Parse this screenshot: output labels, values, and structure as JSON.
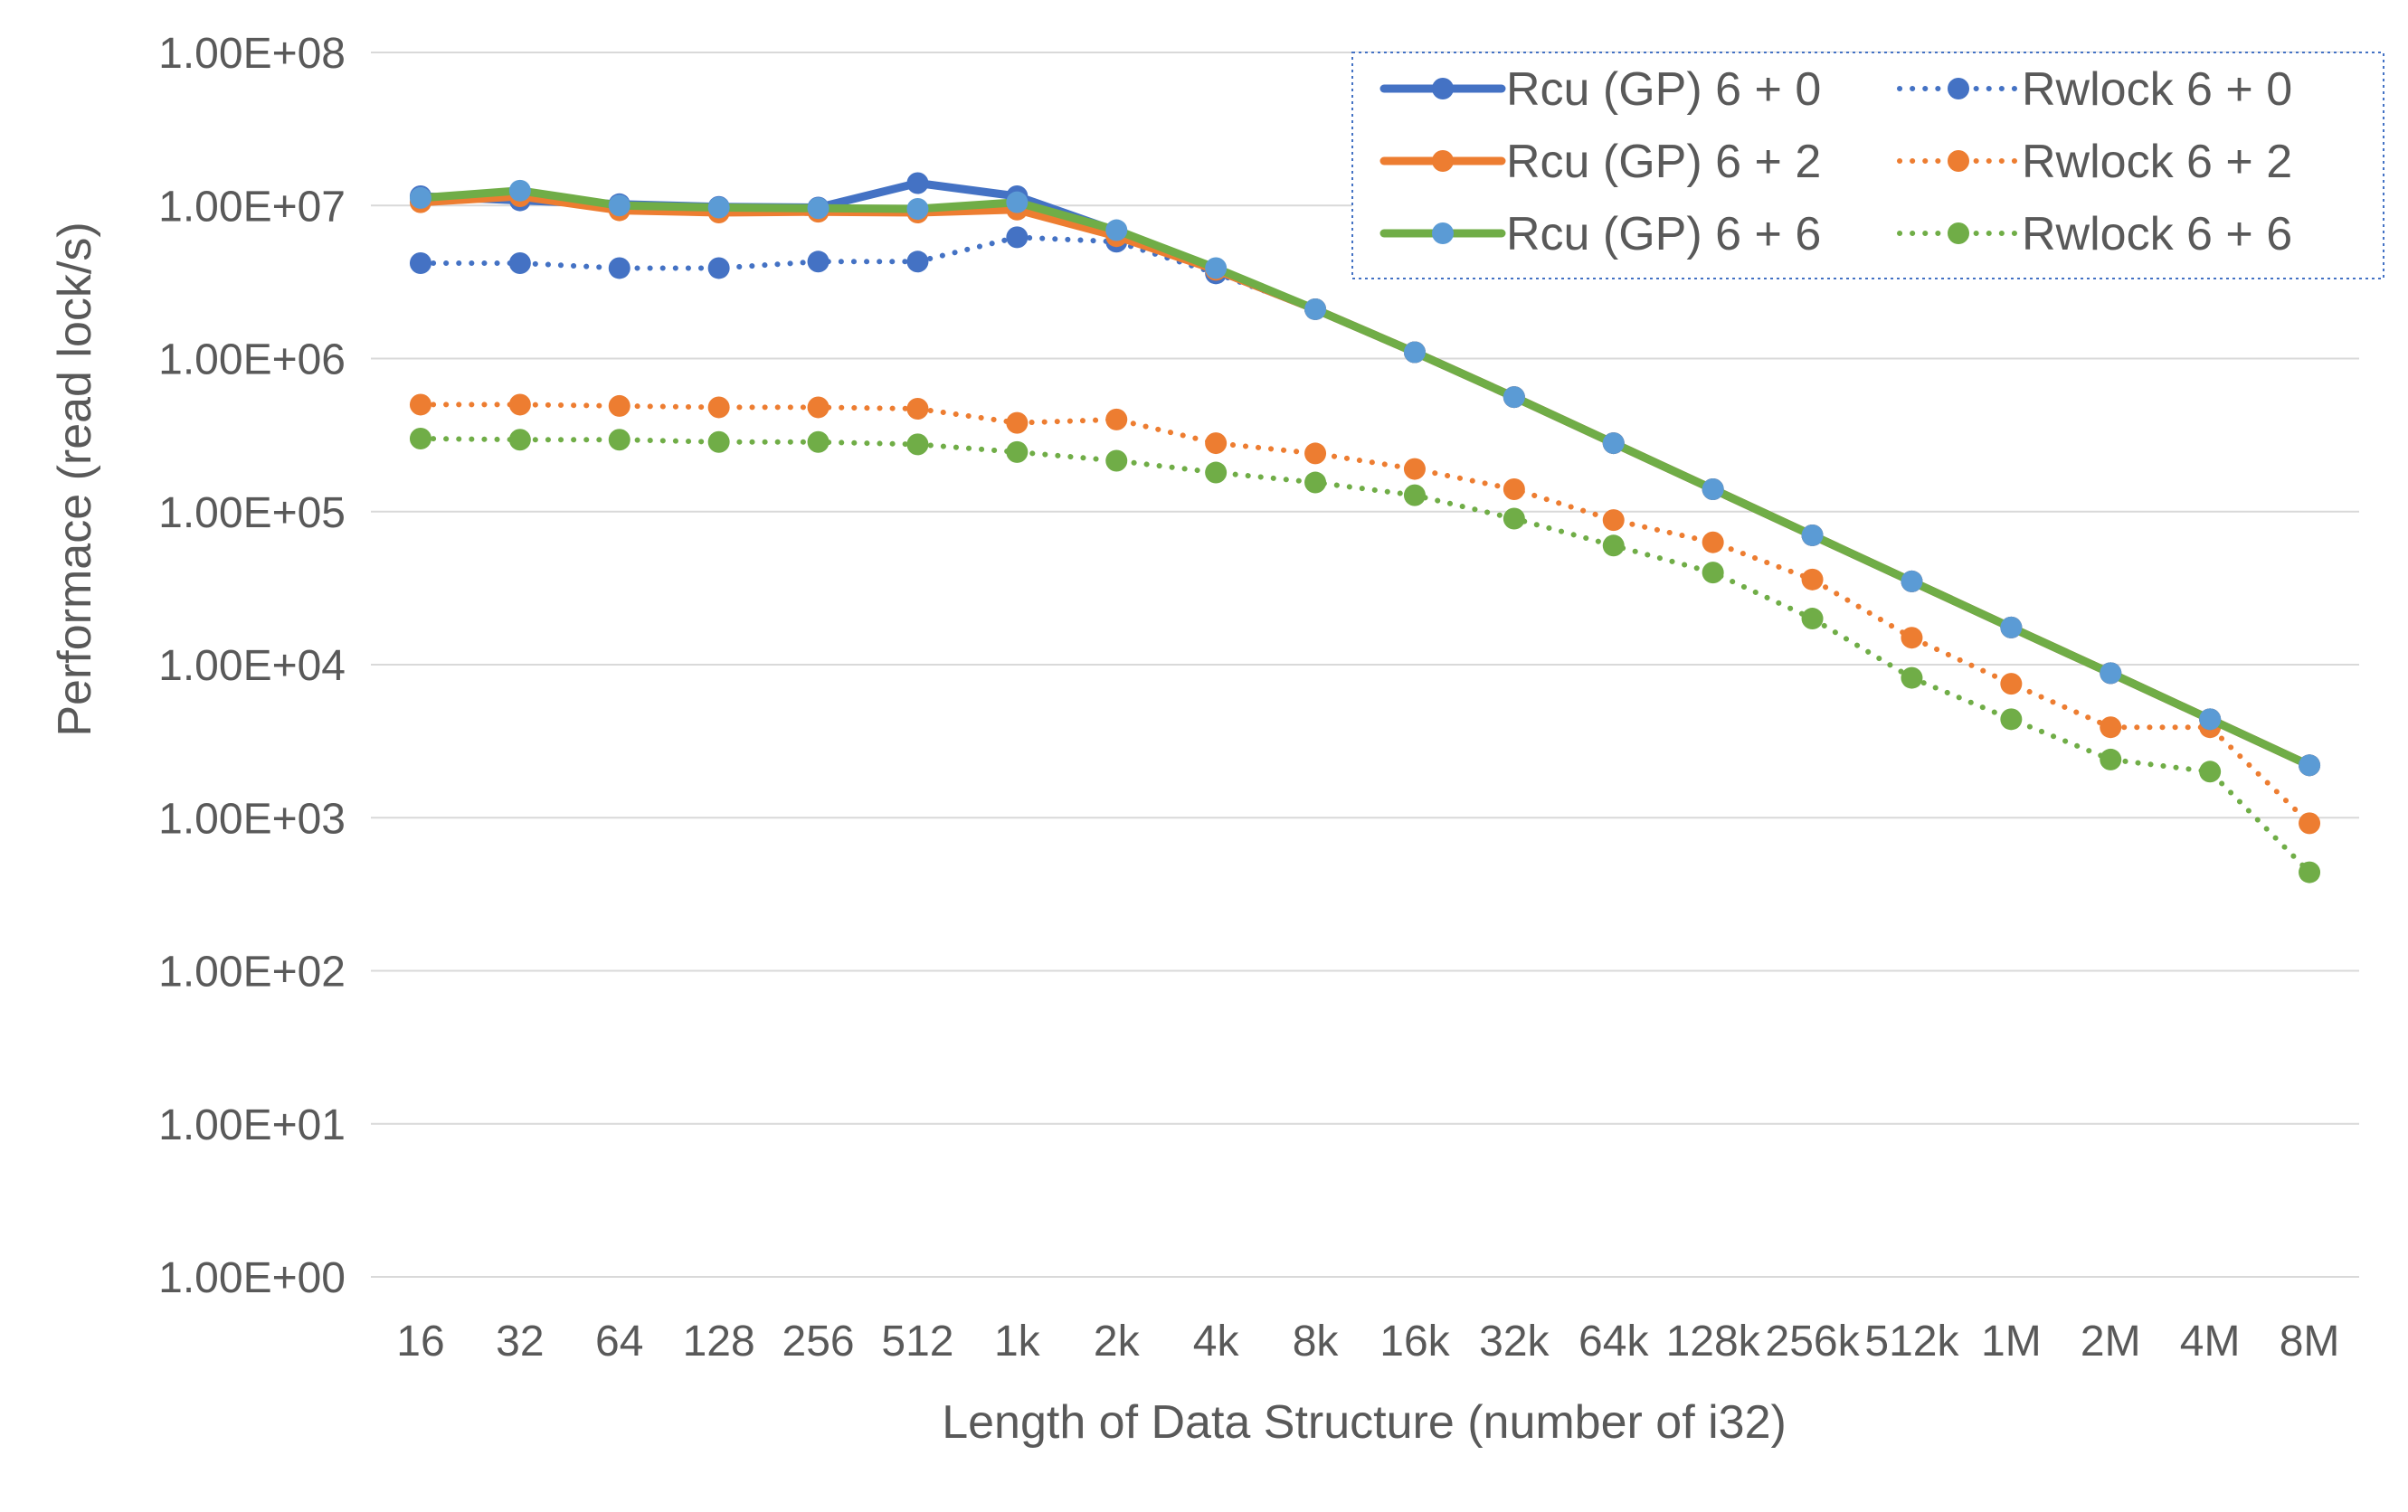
{
  "chart_data": {
    "type": "line",
    "title": "",
    "xlabel": "Length of Data Structure (number of i32)",
    "ylabel": "Performace (read lock/s)",
    "y_scale": "log",
    "ylim": [
      1,
      100000000
    ],
    "y_ticks": [
      1,
      10,
      100,
      1000,
      10000,
      100000,
      1000000,
      10000000,
      100000000
    ],
    "y_tick_labels": [
      "1.00E+00",
      "1.00E+01",
      "1.00E+02",
      "1.00E+03",
      "1.00E+04",
      "1.00E+05",
      "1.00E+06",
      "1.00E+07",
      "1.00E+08"
    ],
    "grid": true,
    "legend_position": "top-right",
    "categories": [
      "16",
      "32",
      "64",
      "128",
      "256",
      "512",
      "1k",
      "2k",
      "4k",
      "8k",
      "16k",
      "32k",
      "64k",
      "128k",
      "256k",
      "512k",
      "1M",
      "2M",
      "4M",
      "8M"
    ],
    "series": [
      {
        "name": "Rcu (GP) 6 + 0",
        "color": "#4472C4",
        "style": "solid",
        "values": [
          11500000,
          10800000,
          10200000,
          9800000,
          9700000,
          14000000,
          11500000,
          6800000,
          3800000,
          2100000,
          1100000,
          560000,
          280000,
          140000,
          70000,
          35000,
          17500,
          8800,
          4400,
          2200
        ]
      },
      {
        "name": "Rwlock 6 + 0",
        "color": "#4472C4",
        "style": "dotted",
        "values": [
          4200000,
          4200000,
          3900000,
          3900000,
          4300000,
          4300000,
          6200000,
          5800000,
          3600000,
          2100000,
          1100000,
          560000,
          280000,
          140000,
          70000,
          35000,
          17500,
          8800,
          4400,
          2200
        ]
      },
      {
        "name": "Rcu (GP) 6 + 2",
        "color": "#ED7D31",
        "style": "solid",
        "values": [
          10500000,
          11500000,
          9300000,
          9000000,
          9100000,
          9000000,
          9400000,
          6300000,
          3800000,
          2100000,
          1100000,
          560000,
          280000,
          140000,
          70000,
          35000,
          17500,
          8800,
          4400,
          2200
        ]
      },
      {
        "name": "Rwlock 6 + 2",
        "color": "#ED7D31",
        "style": "dotted",
        "values": [
          500000,
          500000,
          490000,
          480000,
          480000,
          470000,
          380000,
          400000,
          280000,
          240000,
          190000,
          140000,
          88000,
          63000,
          36000,
          15000,
          7500,
          3900,
          3900,
          920
        ]
      },
      {
        "name": "Rcu (GP) 6 + 6",
        "color": "#70AD47",
        "style": "solid",
        "values": [
          11200000,
          12500000,
          10000000,
          9700000,
          9600000,
          9500000,
          10500000,
          6900000,
          3900000,
          2100000,
          1100000,
          560000,
          280000,
          140000,
          70000,
          35000,
          17500,
          8800,
          4400,
          2200
        ]
      },
      {
        "name": "Rwlock 6 + 6",
        "color": "#70AD47",
        "style": "dotted",
        "values": [
          300000,
          295000,
          295000,
          285000,
          285000,
          275000,
          245000,
          215000,
          180000,
          155000,
          128000,
          90000,
          60000,
          40000,
          20000,
          8200,
          4400,
          2400,
          2000,
          440
        ]
      }
    ],
    "rcu_6_6_marker_color": "#5B9BD5"
  }
}
